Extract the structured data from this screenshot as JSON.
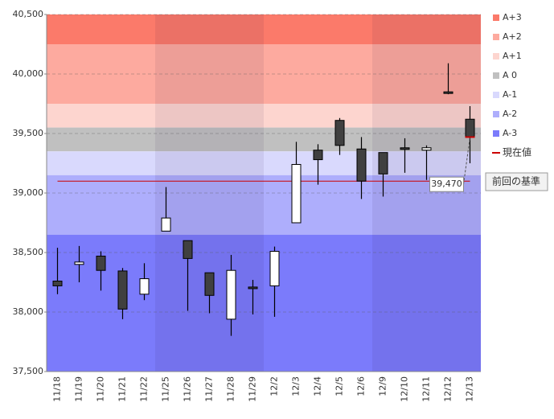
{
  "chart_data": {
    "type": "candlestick",
    "categories": [
      "11/18",
      "11/19",
      "11/20",
      "11/21",
      "11/22",
      "11/25",
      "11/26",
      "11/27",
      "11/28",
      "11/29",
      "12/2",
      "12/3",
      "12/4",
      "12/5",
      "12/6",
      "12/9",
      "12/10",
      "12/11",
      "12/12",
      "12/13"
    ],
    "open": [
      38260,
      38400,
      38470,
      38345,
      38150,
      38680,
      38600,
      38330,
      37940,
      38210,
      38220,
      38750,
      39360,
      39610,
      39370,
      39340,
      39380,
      39360,
      39850,
      39620
    ],
    "high": [
      38540,
      38555,
      38510,
      38370,
      38410,
      39050,
      38600,
      38330,
      38480,
      38270,
      38550,
      39430,
      39410,
      39630,
      39470,
      39340,
      39460,
      39400,
      40090,
      39730
    ],
    "low": [
      38150,
      38250,
      38180,
      37940,
      38100,
      38680,
      38010,
      37990,
      37800,
      37980,
      37960,
      38750,
      39070,
      39320,
      38950,
      38970,
      39170,
      39110,
      39830,
      39250
    ],
    "close": [
      38220,
      38420,
      38350,
      38025,
      38280,
      38790,
      38450,
      38140,
      38350,
      38200,
      38510,
      39240,
      39280,
      39400,
      39100,
      39160,
      39370,
      39380,
      39840,
      39470
    ],
    "ylim": [
      37500,
      40500
    ],
    "yticks": [
      {
        "value": 37500,
        "label": "37,500"
      },
      {
        "value": 38000,
        "label": "38,000"
      },
      {
        "value": 38500,
        "label": "38,500"
      },
      {
        "value": 39000,
        "label": "39,000"
      },
      {
        "value": 39500,
        "label": "39,500"
      },
      {
        "value": 40000,
        "label": "40,000"
      },
      {
        "value": 40500,
        "label": "40,500"
      }
    ],
    "grid": true,
    "bands": [
      {
        "name": "A+3",
        "color": "#fb7a6a",
        "range": [
          40250,
          40500
        ]
      },
      {
        "name": "A+2",
        "color": "#fdaa9f",
        "range": [
          39750,
          40250
        ]
      },
      {
        "name": "A+1",
        "color": "#fdd5cf",
        "range": [
          39550,
          39750
        ]
      },
      {
        "name": "A 0",
        "color": "#c0c0c0",
        "range": [
          39350,
          39550
        ]
      },
      {
        "name": "A-1",
        "color": "#d9d9fd",
        "range": [
          39150,
          39350
        ]
      },
      {
        "name": "A-2",
        "color": "#aeaefc",
        "range": [
          38650,
          39150
        ]
      },
      {
        "name": "A-3",
        "color": "#7b7bfb",
        "range": [
          37500,
          38650
        ]
      }
    ],
    "current_line": {
      "name": "現在値",
      "value": 39100,
      "color": "#cc0000"
    },
    "annotation": {
      "value": 39470,
      "label": "39,470"
    },
    "reference_label": "前回の基準",
    "up_color": "#ffffff",
    "down_color": "#404040"
  }
}
